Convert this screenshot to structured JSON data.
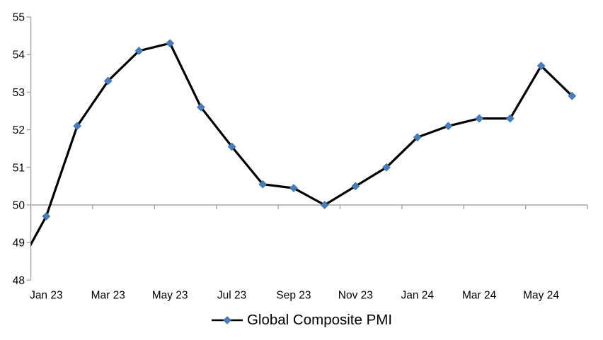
{
  "chart_data": {
    "type": "line",
    "title": "",
    "xlabel": "",
    "ylabel": "",
    "grid": false,
    "reference_line_at": 50,
    "series": [
      {
        "name": "Global Composite PMI",
        "x": [
          "Dec 22",
          "Jan 23",
          "Feb 23",
          "Mar 23",
          "Apr 23",
          "May 23",
          "Jun 23",
          "Jul 23",
          "Aug 23",
          "Sep 23",
          "Oct 23",
          "Nov 23",
          "Dec 23",
          "Jan 24",
          "Feb 24",
          "Mar 24",
          "Apr 24",
          "May 24",
          "Jun 24"
        ],
        "values": [
          48.2,
          49.7,
          52.1,
          53.3,
          54.1,
          54.3,
          52.6,
          51.55,
          50.55,
          50.45,
          50.0,
          50.5,
          51.0,
          51.8,
          52.1,
          52.3,
          52.3,
          53.7,
          52.9
        ],
        "first_point_clipped_at_left_axis": true,
        "line_color": "#000000",
        "line_width": 3.2,
        "marker": "diamond",
        "marker_color": "#4a7ebb",
        "marker_edge_color": "#3c6ea5"
      }
    ],
    "x_axis": {
      "tick_labels": [
        "Jan 23",
        "Mar 23",
        "May 23",
        "Jul 23",
        "Sep 23",
        "Nov 23",
        "Jan 24",
        "Mar 24",
        "May 24"
      ],
      "tick_label_interval_months": 2,
      "axis_line_at_value": 50,
      "tick_marks_every_categories": 2,
      "axis_color": "#a6a6a6",
      "label_color": "#000000"
    },
    "y_axis": {
      "min": 48,
      "max": 55,
      "tick_interval": 1,
      "tick_labels": [
        "48",
        "49",
        "50",
        "51",
        "52",
        "53",
        "54",
        "55"
      ],
      "axis_color": "#a6a6a6",
      "label_color": "#000000"
    },
    "ylim": [
      48,
      55
    ],
    "legend": {
      "position": "bottom-center",
      "label": "Global Composite PMI"
    }
  }
}
